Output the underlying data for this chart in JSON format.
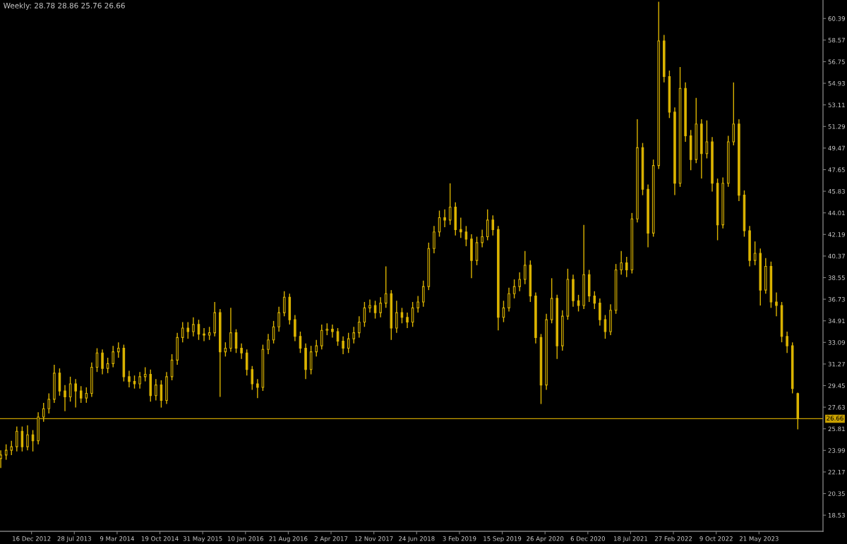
{
  "chart_data": {
    "type": "candlestick",
    "title": "Weekly: 28.78 28.86 25.76 26.66",
    "color": "#dcb400",
    "x": [
      "2012-07-08",
      "2012-08-05",
      "2012-09-02",
      "2012-09-30",
      "2012-10-28",
      "2012-11-25",
      "2012-12-23",
      "2013-01-20",
      "2013-02-17",
      "2013-03-17",
      "2013-04-14",
      "2013-05-12",
      "2013-06-09",
      "2013-07-07",
      "2013-08-04",
      "2013-09-01",
      "2013-09-29",
      "2013-10-27",
      "2013-11-24",
      "2013-12-22",
      "2014-01-19",
      "2014-02-16",
      "2014-03-16",
      "2014-04-13",
      "2014-05-11",
      "2014-06-08",
      "2014-07-06",
      "2014-08-03",
      "2014-08-31",
      "2014-09-28",
      "2014-10-26",
      "2014-11-23",
      "2014-12-21",
      "2015-01-18",
      "2015-02-15",
      "2015-03-15",
      "2015-04-12",
      "2015-05-10",
      "2015-06-07",
      "2015-07-05",
      "2015-08-02",
      "2015-08-30",
      "2015-09-27",
      "2015-10-25",
      "2015-11-22",
      "2015-12-20",
      "2016-01-17",
      "2016-02-14",
      "2016-03-13",
      "2016-04-10",
      "2016-05-08",
      "2016-06-05",
      "2016-07-03",
      "2016-07-31",
      "2016-08-28",
      "2016-09-25",
      "2016-10-23",
      "2016-11-20",
      "2016-12-18",
      "2017-01-15",
      "2017-02-12",
      "2017-03-12",
      "2017-04-09",
      "2017-05-07",
      "2017-06-04",
      "2017-07-02",
      "2017-07-30",
      "2017-08-27",
      "2017-09-24",
      "2017-10-22",
      "2017-11-19",
      "2017-12-17",
      "2018-01-14",
      "2018-02-11",
      "2018-03-11",
      "2018-04-08",
      "2018-05-06",
      "2018-06-03",
      "2018-07-01",
      "2018-07-29",
      "2018-08-26",
      "2018-09-23",
      "2018-10-21",
      "2018-11-18",
      "2018-12-16",
      "2019-01-13",
      "2019-02-10",
      "2019-03-10",
      "2019-04-07",
      "2019-05-05",
      "2019-06-02",
      "2019-06-30",
      "2019-07-28",
      "2019-08-25",
      "2019-09-22",
      "2019-10-20",
      "2019-11-17",
      "2019-12-15",
      "2020-01-12",
      "2020-02-09",
      "2020-03-08",
      "2020-04-05",
      "2020-05-03",
      "2020-05-31",
      "2020-06-28",
      "2020-07-26",
      "2020-08-23",
      "2020-09-20",
      "2020-10-18",
      "2020-11-15",
      "2020-12-13",
      "2021-01-10",
      "2021-02-07",
      "2021-03-07",
      "2021-04-04",
      "2021-05-02",
      "2021-05-30",
      "2021-06-27",
      "2021-07-25",
      "2021-08-22",
      "2021-09-19",
      "2021-10-17",
      "2021-11-14",
      "2021-12-12",
      "2022-01-09",
      "2022-02-06",
      "2022-03-06",
      "2022-04-03",
      "2022-05-01",
      "2022-05-29",
      "2022-06-26",
      "2022-07-24",
      "2022-08-21",
      "2022-09-18",
      "2022-10-16",
      "2022-11-13",
      "2022-12-11",
      "2023-01-08",
      "2023-02-05",
      "2023-03-05",
      "2023-04-02",
      "2023-04-30",
      "2023-05-28",
      "2023-06-25",
      "2023-07-23",
      "2023-08-20",
      "2023-09-17",
      "2023-10-15",
      "2023-11-12",
      "2023-12-10"
    ],
    "ohlc": [
      [
        23.3,
        24.0,
        22.5,
        23.6
      ],
      [
        23.6,
        24.5,
        23.2,
        24.0
      ],
      [
        24.0,
        24.8,
        23.6,
        24.3
      ],
      [
        24.3,
        26.0,
        23.9,
        25.6
      ],
      [
        25.6,
        26.0,
        23.9,
        24.3
      ],
      [
        24.3,
        26.1,
        24.0,
        25.3
      ],
      [
        25.3,
        25.7,
        23.9,
        24.8
      ],
      [
        24.8,
        27.2,
        24.5,
        26.8
      ],
      [
        26.8,
        28.0,
        26.4,
        27.5
      ],
      [
        27.5,
        28.8,
        27.1,
        28.3
      ],
      [
        28.3,
        31.2,
        28.0,
        30.5
      ],
      [
        30.5,
        30.9,
        28.6,
        29.0
      ],
      [
        29.0,
        29.5,
        27.3,
        28.5
      ],
      [
        28.5,
        30.2,
        28.1,
        29.6
      ],
      [
        29.6,
        30.0,
        27.6,
        29.0
      ],
      [
        29.0,
        29.4,
        28.0,
        28.4
      ],
      [
        28.4,
        29.3,
        28.0,
        28.8
      ],
      [
        28.8,
        31.4,
        28.5,
        31.0
      ],
      [
        31.0,
        32.6,
        30.6,
        32.2
      ],
      [
        32.2,
        32.5,
        30.4,
        30.9
      ],
      [
        30.9,
        31.8,
        30.5,
        31.3
      ],
      [
        31.3,
        32.8,
        31.0,
        32.3
      ],
      [
        32.3,
        33.1,
        31.8,
        32.6
      ],
      [
        32.6,
        32.9,
        29.8,
        30.2
      ],
      [
        30.2,
        30.7,
        29.3,
        29.8
      ],
      [
        29.8,
        30.3,
        29.2,
        29.6
      ],
      [
        29.6,
        30.6,
        29.2,
        30.2
      ],
      [
        30.2,
        31.0,
        29.8,
        30.4
      ],
      [
        30.4,
        30.8,
        28.1,
        28.6
      ],
      [
        28.6,
        30.0,
        28.2,
        29.5
      ],
      [
        29.5,
        29.9,
        27.6,
        28.2
      ],
      [
        28.2,
        30.6,
        27.9,
        30.2
      ],
      [
        30.2,
        32.1,
        29.9,
        31.6
      ],
      [
        31.6,
        33.9,
        31.2,
        33.5
      ],
      [
        33.5,
        34.8,
        33.1,
        34.3
      ],
      [
        34.3,
        34.8,
        33.4,
        34.0
      ],
      [
        34.0,
        35.2,
        33.6,
        34.6
      ],
      [
        34.6,
        35.0,
        33.3,
        33.8
      ],
      [
        33.8,
        34.3,
        33.2,
        33.7
      ],
      [
        33.7,
        34.4,
        33.3,
        33.9
      ],
      [
        33.9,
        36.5,
        33.6,
        35.6
      ],
      [
        35.6,
        35.9,
        28.5,
        32.3
      ],
      [
        32.3,
        33.1,
        31.9,
        32.6
      ],
      [
        32.6,
        36.0,
        32.3,
        33.9
      ],
      [
        33.9,
        34.2,
        32.2,
        32.6
      ],
      [
        32.6,
        33.0,
        31.7,
        32.2
      ],
      [
        32.2,
        32.5,
        30.3,
        30.8
      ],
      [
        30.8,
        31.1,
        29.1,
        29.6
      ],
      [
        29.6,
        30.0,
        28.4,
        29.3
      ],
      [
        29.3,
        32.9,
        29.0,
        32.5
      ],
      [
        32.5,
        33.8,
        32.1,
        33.3
      ],
      [
        33.3,
        34.9,
        33.0,
        34.4
      ],
      [
        34.4,
        36.1,
        34.0,
        35.6
      ],
      [
        35.6,
        37.4,
        35.3,
        36.9
      ],
      [
        36.9,
        37.2,
        34.6,
        35.0
      ],
      [
        35.0,
        35.4,
        33.2,
        33.6
      ],
      [
        33.6,
        34.0,
        32.2,
        32.6
      ],
      [
        32.6,
        33.0,
        30.0,
        30.8
      ],
      [
        30.8,
        32.8,
        30.4,
        32.3
      ],
      [
        32.3,
        33.3,
        31.9,
        32.8
      ],
      [
        32.8,
        34.6,
        32.5,
        34.1
      ],
      [
        34.1,
        34.7,
        33.7,
        34.2
      ],
      [
        34.2,
        34.6,
        33.5,
        34.0
      ],
      [
        34.0,
        34.3,
        32.8,
        33.2
      ],
      [
        33.2,
        33.6,
        32.1,
        32.6
      ],
      [
        32.6,
        33.9,
        32.2,
        33.4
      ],
      [
        33.4,
        34.4,
        33.0,
        33.9
      ],
      [
        33.9,
        35.3,
        33.5,
        34.8
      ],
      [
        34.8,
        36.5,
        34.4,
        36.0
      ],
      [
        36.0,
        36.7,
        35.6,
        36.2
      ],
      [
        36.2,
        36.6,
        35.1,
        35.6
      ],
      [
        35.6,
        36.9,
        35.2,
        36.4
      ],
      [
        36.4,
        39.5,
        36.0,
        37.2
      ],
      [
        37.2,
        37.5,
        33.3,
        34.3
      ],
      [
        34.3,
        36.6,
        33.9,
        35.6
      ],
      [
        35.6,
        36.0,
        34.7,
        35.2
      ],
      [
        35.2,
        35.6,
        34.3,
        34.8
      ],
      [
        34.8,
        36.5,
        34.4,
        36.0
      ],
      [
        36.0,
        37.0,
        35.6,
        36.5
      ],
      [
        36.5,
        38.3,
        36.1,
        37.8
      ],
      [
        37.8,
        41.5,
        37.5,
        41.0
      ],
      [
        41.0,
        42.9,
        40.6,
        42.4
      ],
      [
        42.4,
        44.2,
        42.0,
        43.6
      ],
      [
        43.6,
        44.3,
        42.8,
        43.4
      ],
      [
        43.4,
        46.5,
        43.0,
        44.5
      ],
      [
        44.5,
        44.9,
        42.1,
        42.6
      ],
      [
        42.6,
        43.6,
        41.9,
        42.4
      ],
      [
        42.4,
        42.9,
        41.2,
        41.8
      ],
      [
        41.8,
        42.2,
        38.5,
        40.0
      ],
      [
        40.0,
        42.0,
        39.6,
        41.5
      ],
      [
        41.5,
        42.6,
        41.1,
        42.0
      ],
      [
        42.0,
        44.3,
        41.7,
        43.4
      ],
      [
        43.4,
        43.8,
        42.1,
        42.6
      ],
      [
        42.6,
        42.9,
        34.1,
        35.2
      ],
      [
        35.2,
        36.6,
        34.8,
        36.0
      ],
      [
        36.0,
        37.7,
        35.7,
        37.2
      ],
      [
        37.2,
        38.4,
        36.8,
        37.8
      ],
      [
        37.8,
        39.0,
        37.4,
        38.4
      ],
      [
        38.4,
        40.8,
        38.0,
        39.6
      ],
      [
        39.6,
        40.0,
        36.5,
        37.0
      ],
      [
        37.0,
        37.3,
        33.0,
        33.5
      ],
      [
        33.5,
        33.8,
        27.9,
        29.5
      ],
      [
        29.5,
        35.5,
        29.1,
        35.0
      ],
      [
        35.0,
        38.5,
        34.7,
        36.8
      ],
      [
        36.8,
        37.1,
        31.7,
        32.8
      ],
      [
        32.8,
        35.8,
        32.4,
        35.3
      ],
      [
        35.3,
        39.3,
        35.0,
        38.4
      ],
      [
        38.4,
        38.8,
        36.1,
        36.6
      ],
      [
        36.6,
        37.1,
        35.7,
        36.2
      ],
      [
        36.2,
        43.0,
        35.9,
        38.8
      ],
      [
        38.8,
        39.2,
        36.5,
        37.0
      ],
      [
        37.0,
        37.4,
        35.9,
        36.4
      ],
      [
        36.4,
        36.8,
        34.5,
        35.0
      ],
      [
        35.0,
        35.4,
        33.4,
        34.0
      ],
      [
        34.0,
        36.3,
        33.7,
        35.8
      ],
      [
        35.8,
        39.7,
        35.5,
        39.2
      ],
      [
        39.2,
        40.8,
        38.8,
        39.8
      ],
      [
        39.8,
        40.3,
        38.6,
        39.2
      ],
      [
        39.2,
        44.0,
        38.9,
        43.5
      ],
      [
        43.5,
        51.9,
        43.2,
        49.5
      ],
      [
        49.5,
        49.9,
        45.5,
        46.0
      ],
      [
        46.0,
        46.4,
        41.1,
        42.3
      ],
      [
        42.3,
        48.5,
        42.0,
        48.0
      ],
      [
        48.0,
        61.8,
        47.7,
        58.5
      ],
      [
        58.5,
        59.0,
        55.0,
        55.5
      ],
      [
        55.5,
        56.0,
        52.0,
        52.5
      ],
      [
        52.5,
        52.9,
        45.5,
        46.5
      ],
      [
        46.5,
        56.3,
        46.2,
        54.5
      ],
      [
        54.5,
        55.0,
        50.0,
        50.5
      ],
      [
        50.5,
        51.0,
        47.6,
        48.5
      ],
      [
        48.5,
        53.7,
        48.2,
        51.5
      ],
      [
        51.5,
        51.9,
        46.9,
        49.0
      ],
      [
        49.0,
        51.8,
        48.6,
        50.0
      ],
      [
        50.0,
        50.4,
        45.8,
        46.5
      ],
      [
        46.5,
        46.9,
        41.7,
        43.0
      ],
      [
        43.0,
        47.0,
        42.7,
        46.5
      ],
      [
        46.5,
        50.5,
        46.2,
        50.0
      ],
      [
        50.0,
        55.0,
        49.7,
        51.5
      ],
      [
        51.5,
        51.9,
        45.0,
        45.5
      ],
      [
        45.5,
        45.9,
        42.0,
        42.5
      ],
      [
        42.5,
        42.9,
        39.5,
        40.0
      ],
      [
        40.0,
        41.6,
        39.6,
        40.6
      ],
      [
        40.6,
        41.0,
        36.2,
        37.5
      ],
      [
        37.5,
        40.2,
        37.2,
        39.5
      ],
      [
        39.5,
        39.9,
        36.0,
        36.5
      ],
      [
        36.5,
        37.3,
        35.3,
        36.2
      ],
      [
        36.2,
        36.5,
        33.1,
        33.6
      ],
      [
        33.6,
        34.0,
        32.2,
        32.8
      ],
      [
        32.8,
        33.1,
        28.8,
        29.2
      ],
      [
        28.78,
        28.86,
        25.76,
        26.66
      ]
    ],
    "xlim": [
      "2012-07-04",
      "2024-04-20"
    ],
    "ylim": [
      17.17,
      61.95
    ],
    "xticks": [
      {
        "value": "2012-12-16",
        "label": "16 Dec 2012"
      },
      {
        "value": "2013-07-28",
        "label": "28 Jul 2013"
      },
      {
        "value": "2014-03-09",
        "label": "9 Mar 2014"
      },
      {
        "value": "2014-10-19",
        "label": "19 Oct 2014"
      },
      {
        "value": "2015-05-31",
        "label": "31 May 2015"
      },
      {
        "value": "2016-01-10",
        "label": "10 Jan 2016"
      },
      {
        "value": "2016-08-21",
        "label": "21 Aug 2016"
      },
      {
        "value": "2017-04-02",
        "label": "2 Apr 2017"
      },
      {
        "value": "2017-11-12",
        "label": "12 Nov 2017"
      },
      {
        "value": "2018-06-24",
        "label": "24 Jun 2018"
      },
      {
        "value": "2019-02-03",
        "label": "3 Feb 2019"
      },
      {
        "value": "2019-09-15",
        "label": "15 Sep 2019"
      },
      {
        "value": "2020-04-26",
        "label": "26 Apr 2020"
      },
      {
        "value": "2020-12-06",
        "label": "6 Dec 2020"
      },
      {
        "value": "2021-07-18",
        "label": "18 Jul 2021"
      },
      {
        "value": "2022-02-27",
        "label": "27 Feb 2022"
      },
      {
        "value": "2022-10-09",
        "label": "9 Oct 2022"
      },
      {
        "value": "2023-05-21",
        "label": "21 May 2023"
      }
    ],
    "yticks": [
      18.53,
      20.35,
      22.17,
      23.99,
      25.81,
      27.63,
      29.45,
      31.27,
      33.09,
      34.91,
      36.73,
      38.55,
      40.37,
      42.19,
      44.01,
      45.83,
      47.65,
      49.47,
      51.29,
      53.11,
      54.93,
      56.75,
      58.57,
      60.39
    ],
    "ref_lines": [
      {
        "axis": "y",
        "value": 26.66,
        "label": "26.66",
        "color": "#c8a000"
      }
    ]
  }
}
